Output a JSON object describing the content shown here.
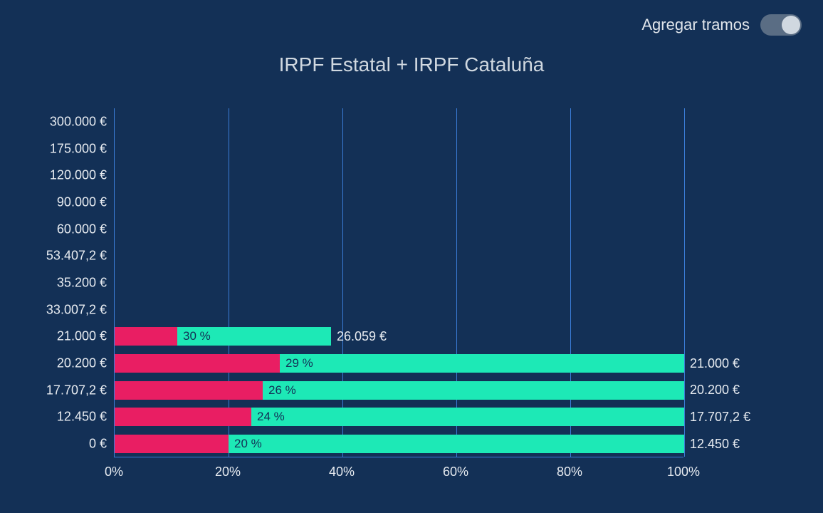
{
  "header": {
    "toggle_label": "Agregar tramos",
    "toggle_on": true
  },
  "chart": {
    "title": "IRPF Estatal + IRPF Cataluña",
    "type": "horizontal-stacked-bar",
    "background_color": "#133056",
    "grid_color": "#3b7dd8",
    "text_color": "#e8ecf1",
    "title_color": "#d0d8e0",
    "segment1_color": "#e91e63",
    "segment2_color": "#1de9b6",
    "xlim": [
      0,
      100
    ],
    "x_ticks": [
      0,
      20,
      40,
      60,
      80,
      100
    ],
    "x_tick_labels": [
      "0%",
      "20%",
      "40%",
      "60%",
      "80%",
      "100%"
    ],
    "y_labels": [
      "300.000 €",
      "175.000 €",
      "120.000 €",
      "90.000 €",
      "60.000 €",
      "53.407,2 €",
      "35.200 €",
      "33.007,2 €",
      "21.000 €",
      "20.200 €",
      "17.707,2 €",
      "12.450 €",
      "0 €"
    ],
    "row_count": 13,
    "bars": [
      {
        "row": 8,
        "seg1_pct": 11,
        "seg2_end_pct": 38,
        "inner_label": "30 %",
        "right_label": "26.059 €"
      },
      {
        "row": 9,
        "seg1_pct": 29,
        "seg2_end_pct": 100,
        "inner_label": "29 %",
        "right_label": "21.000 €"
      },
      {
        "row": 10,
        "seg1_pct": 26,
        "seg2_end_pct": 100,
        "inner_label": "26 %",
        "right_label": "20.200 €"
      },
      {
        "row": 11,
        "seg1_pct": 24,
        "seg2_end_pct": 100,
        "inner_label": "24 %",
        "right_label": "17.707,2 €"
      },
      {
        "row": 12,
        "seg1_pct": 20,
        "seg2_end_pct": 100,
        "inner_label": "20 %",
        "right_label": "12.450 €"
      }
    ]
  }
}
